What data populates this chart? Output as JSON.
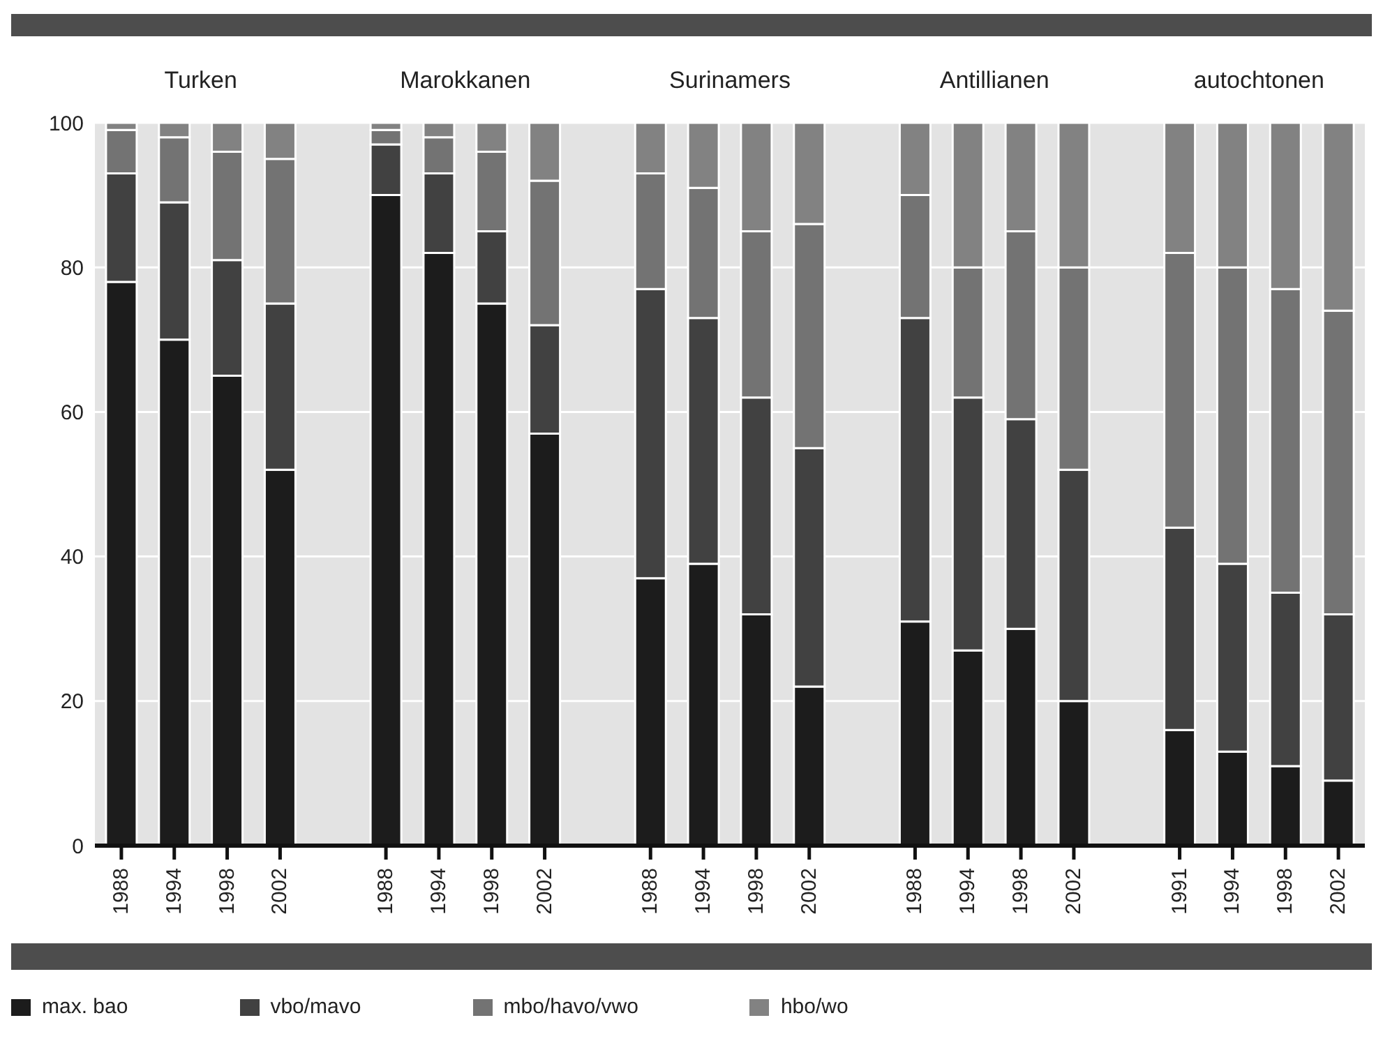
{
  "chart_data": {
    "type": "bar",
    "stacked": true,
    "categories": [
      "1988",
      "1994",
      "1998",
      "2002",
      null,
      "1988",
      "1994",
      "1998",
      "2002",
      null,
      "1988",
      "1994",
      "1998",
      "2002",
      null,
      "1988",
      "1994",
      "1998",
      "2002",
      null,
      "1991",
      "1994",
      "1998",
      "2002"
    ],
    "series": [
      {
        "name": "max. bao",
        "color": "#1c1c1c",
        "values": [
          78,
          70,
          65,
          52,
          null,
          90,
          82,
          75,
          57,
          null,
          37,
          39,
          32,
          22,
          null,
          31,
          27,
          30,
          20,
          null,
          16,
          13,
          11,
          9
        ]
      },
      {
        "name": "vbo/mavo",
        "color": "#414141",
        "values": [
          15,
          19,
          16,
          23,
          null,
          7,
          11,
          10,
          15,
          null,
          40,
          34,
          30,
          33,
          null,
          42,
          35,
          29,
          32,
          null,
          28,
          26,
          24,
          23
        ]
      },
      {
        "name": "mbo/havo/vwo",
        "color": "#737373",
        "values": [
          6,
          9,
          15,
          20,
          null,
          2,
          5,
          11,
          20,
          null,
          16,
          18,
          23,
          31,
          null,
          17,
          18,
          26,
          28,
          null,
          38,
          41,
          42,
          42
        ]
      },
      {
        "name": "hbo/wo",
        "color": "#828282",
        "values": [
          1,
          2,
          4,
          5,
          null,
          1,
          2,
          4,
          8,
          null,
          7,
          9,
          15,
          14,
          null,
          10,
          20,
          15,
          20,
          null,
          18,
          20,
          23,
          26
        ]
      }
    ],
    "annotations": [
      "Turken",
      "Marokkanen",
      "Surinamers",
      "Antillianen",
      "autochtonen"
    ],
    "ylim": [
      0,
      100
    ],
    "yticks": [
      0,
      20,
      40,
      60,
      80,
      100
    ],
    "grid": "y",
    "legend": "bottom"
  }
}
